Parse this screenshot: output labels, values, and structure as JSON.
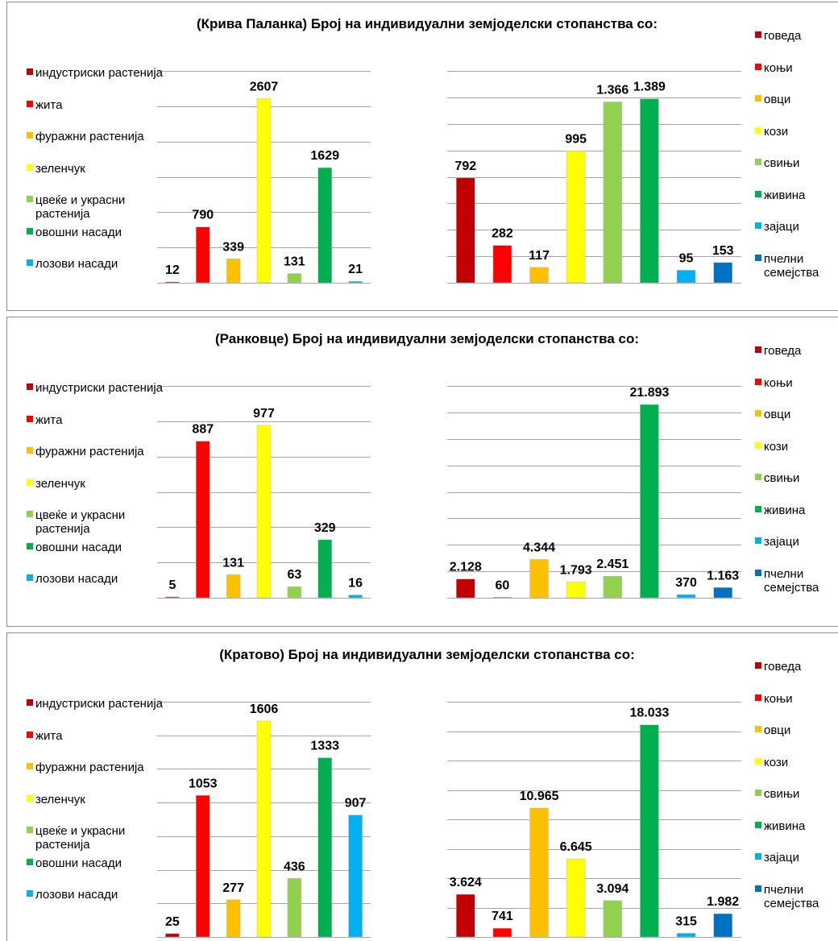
{
  "chart_data": [
    {
      "type": "bar",
      "title": "(Крива Паланка) Број на индивидуални земјоделски стопанства со:",
      "categories": [
        "индустриски растенија",
        "жита",
        "фуражни растенија",
        "зеленчук",
        "цвеќе и украсни растенија",
        "овошни насади",
        "лозови насади"
      ],
      "values": [
        12,
        790,
        339,
        2607,
        131,
        1629,
        21
      ],
      "colors": [
        "#c00000",
        "#ff0000",
        "#ffc000",
        "#ffff00",
        "#92d050",
        "#00b050",
        "#00b0f0"
      ],
      "ylim": [
        0,
        3000
      ],
      "yticks": [
        0,
        500,
        1000,
        1500,
        2000,
        2500,
        3000
      ],
      "grid": true
    },
    {
      "type": "bar",
      "categories": [
        "говеда",
        "коњи",
        "овци",
        "кози",
        "свињи",
        "живина",
        "зајаци",
        "пчелни семејства"
      ],
      "values": [
        792,
        282,
        117,
        995,
        1366,
        1389,
        95,
        153
      ],
      "value_labels": [
        "792",
        "282",
        "117",
        "995",
        "1.366",
        "1.389",
        "95",
        "153"
      ],
      "colors": [
        "#c00000",
        "#ff0000",
        "#ffc000",
        "#ffff00",
        "#92d050",
        "#00b050",
        "#00b0f0",
        "#0070c0"
      ],
      "ylim": [
        0,
        1600
      ],
      "yticks": [
        0,
        200,
        400,
        600,
        800,
        1000,
        1200,
        1400,
        1600
      ],
      "grid": true
    },
    {
      "type": "bar",
      "title": "(Ранковце) Број на индивидуални земјоделски стопанства со:",
      "categories": [
        "индустриски растенија",
        "жита",
        "фуражни растенија",
        "зеленчук",
        "цвеќе и украсни растенија",
        "овошни насади",
        "лозови насади"
      ],
      "values": [
        5,
        887,
        131,
        977,
        63,
        329,
        16
      ],
      "colors": [
        "#c00000",
        "#ff0000",
        "#ffc000",
        "#ffff00",
        "#92d050",
        "#00b050",
        "#00b0f0"
      ],
      "ylim": [
        0,
        1200
      ],
      "yticks": [
        0,
        200,
        400,
        600,
        800,
        1000,
        1200
      ],
      "grid": true
    },
    {
      "type": "bar",
      "categories": [
        "говеда",
        "коњи",
        "овци",
        "кози",
        "свињи",
        "живина",
        "зајаци",
        "пчелни семејства"
      ],
      "values": [
        2128,
        60,
        4344,
        1793,
        2451,
        21893,
        370,
        1163
      ],
      "value_labels": [
        "2.128",
        "60",
        "4.344",
        "1.793",
        "2.451",
        "21.893",
        "370",
        "1.163"
      ],
      "colors": [
        "#c00000",
        "#ff0000",
        "#ffc000",
        "#ffff00",
        "#92d050",
        "#00b050",
        "#00b0f0",
        "#0070c0"
      ],
      "ylim": [
        0,
        24000
      ],
      "yticks": [
        0,
        3000,
        6000,
        9000,
        12000,
        15000,
        18000,
        21000,
        24000
      ],
      "grid": true
    },
    {
      "type": "bar",
      "title": "(Кратово) Број на индивидуални земјоделски стопанства со:",
      "categories": [
        "индустриски растенија",
        "жита",
        "фуражни растенија",
        "зеленчук",
        "цвеќе и украсни растенија",
        "овошни насади",
        "лозови насади"
      ],
      "values": [
        25,
        1053,
        277,
        1606,
        436,
        1333,
        907
      ],
      "colors": [
        "#c00000",
        "#ff0000",
        "#ffc000",
        "#ffff00",
        "#92d050",
        "#00b050",
        "#00b0f0"
      ],
      "ylim": [
        0,
        1750
      ],
      "yticks": [
        0,
        250,
        500,
        750,
        1000,
        1250,
        1500,
        1750
      ],
      "grid": true
    },
    {
      "type": "bar",
      "categories": [
        "говеда",
        "коњи",
        "овци",
        "кози",
        "свињи",
        "живина",
        "зајаци",
        "пчелни семејства"
      ],
      "values": [
        3624,
        741,
        10965,
        6645,
        3094,
        18033,
        315,
        1982
      ],
      "value_labels": [
        "3.624",
        "741",
        "10.965",
        "6.645",
        "3.094",
        "18.033",
        "315",
        "1.982"
      ],
      "colors": [
        "#c00000",
        "#ff0000",
        "#ffc000",
        "#ffff00",
        "#92d050",
        "#00b050",
        "#00b0f0",
        "#0070c0"
      ],
      "ylim": [
        0,
        20000
      ],
      "yticks": [
        0,
        2500,
        5000,
        7500,
        10000,
        12500,
        15000,
        17500,
        20000
      ],
      "grid": true
    }
  ]
}
